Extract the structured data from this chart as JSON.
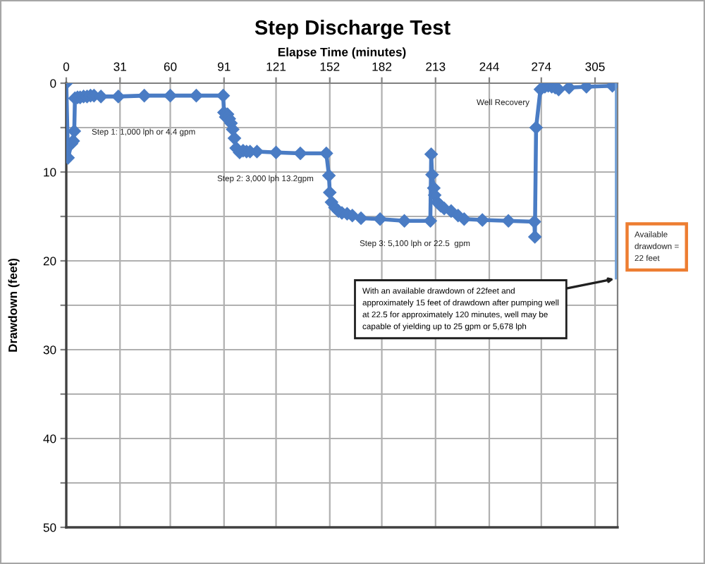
{
  "chart_data": {
    "type": "line",
    "title": "Step Discharge Test",
    "xlabel": "Elapse Time (minutes)",
    "ylabel": "Drawdown (feet)",
    "xlim": [
      0,
      318
    ],
    "xticks": [
      0,
      31,
      60,
      91,
      121,
      152,
      182,
      213,
      244,
      274,
      305
    ],
    "ylim": [
      50,
      0
    ],
    "yticks": [
      0,
      {
        "value": 5,
        "label": null
      },
      10,
      {
        "value": 15,
        "label": null
      },
      20,
      {
        "value": 25,
        "label": null
      },
      30,
      {
        "value": 35,
        "label": null
      },
      40,
      {
        "value": 45,
        "label": null
      },
      50
    ],
    "grid": true,
    "marker": "diamond",
    "line_style": "solid",
    "series": [
      {
        "color": "#4a7cc4",
        "x": [
          0,
          1,
          3,
          4,
          4.6,
          5,
          6.5,
          8,
          10,
          12,
          14,
          16,
          20,
          30,
          45,
          60,
          75,
          90.5,
          91,
          92,
          93,
          94,
          95,
          96,
          97,
          98,
          100,
          102,
          104,
          106,
          110,
          121,
          135,
          150,
          151.5,
          152,
          153,
          155,
          157,
          159,
          162,
          165,
          170,
          181,
          195,
          210,
          210.5,
          211,
          212,
          212.5,
          214,
          216,
          218,
          222,
          226,
          229.5,
          240,
          255,
          270,
          270.3,
          271,
          273.5,
          276,
          278,
          280,
          282,
          284,
          290,
          300,
          315
        ],
        "values": [
          0,
          8.4,
          6.8,
          6.5,
          5.4,
          1.7,
          1.6,
          1.6,
          1.5,
          1.5,
          1.4,
          1.4,
          1.5,
          1.5,
          1.4,
          1.4,
          1.4,
          1.4,
          3.3,
          3.8,
          3.5,
          4.0,
          4.5,
          5.2,
          6.2,
          7.3,
          7.8,
          7.6,
          7.7,
          7.7,
          7.7,
          7.8,
          7.9,
          7.9,
          10.4,
          12.3,
          13.4,
          14.0,
          14.4,
          14.6,
          14.7,
          14.9,
          15.2,
          15.3,
          15.5,
          15.5,
          8.0,
          10.3,
          11.8,
          12.6,
          13.4,
          13.8,
          14.1,
          14.4,
          14.9,
          15.3,
          15.4,
          15.5,
          15.6,
          17.3,
          5.0,
          0.7,
          0.4,
          0.3,
          0.4,
          0.5,
          0.7,
          0.5,
          0.4,
          0.3
        ]
      },
      {
        "color": "#6f9fd8",
        "marker": "none",
        "x": [
          317,
          317
        ],
        "values": [
          0,
          22
        ]
      }
    ],
    "annotations": [
      "Step 1: 1,000 lph or 4.4 gpm",
      "Step 2: 3,000 lph 13.2gpm",
      "Step 3: 5,100 lph or 22.5  gpm",
      "Well Recovery",
      {
        "text": "With an available drawdown of 22feet and\napproximately 15 feet of drawdown after pumping well\nat 22.5 for approximately 120 minutes, well may be\ncapable of yielding up to 25 gpm or 5,678 lph",
        "x": 317,
        "y": 22
      },
      "Available\ndrawdown =\n22 feet"
    ]
  }
}
